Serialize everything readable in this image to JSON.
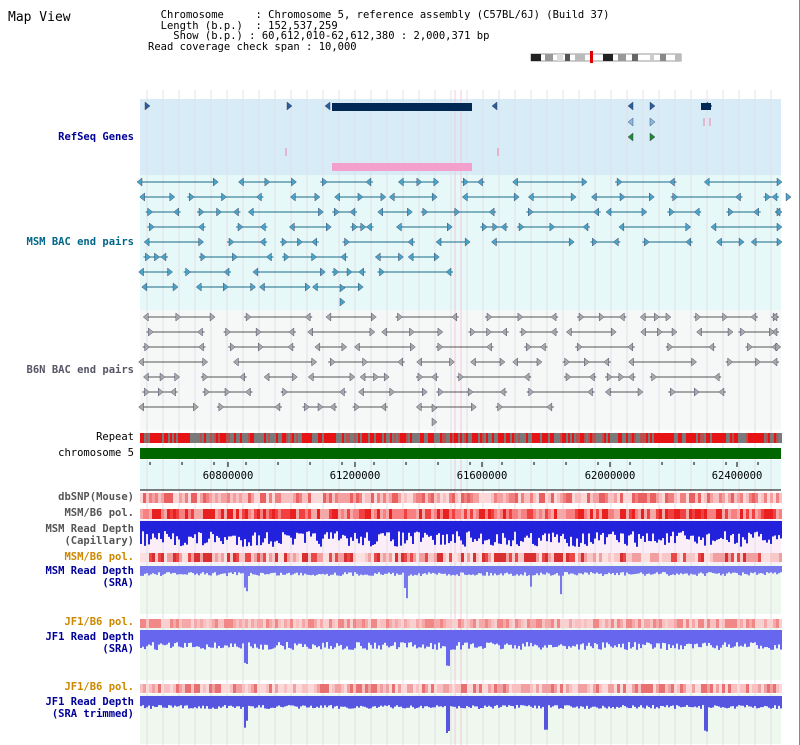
{
  "title": "Map View",
  "info": {
    "chromosome_label": "Chromosome",
    "chromosome_value": "Chromosome 5, reference assembly (C57BL/6J) (Build 37)",
    "length_label": "Length (b.p.)",
    "length_value": "152,537,259",
    "show_label": "Show (b.p.)",
    "show_value": "60,612,010-62,612,380 : 2,000,371 bp",
    "coverage_label": "Read coverage check span",
    "coverage_value": "10,000"
  },
  "tracks": {
    "refseq": "RefSeq Genes",
    "msm_bac": "MSM BAC end pairs",
    "b6n_bac": "B6N BAC end pairs",
    "repeat": "Repeat",
    "chromosome": "chromosome 5",
    "dbsnp": "dbSNP(Mouse)",
    "msm_b6_pol_1": "MSM/B6 pol.",
    "msm_depth_cap_1": "MSM Read Depth",
    "msm_depth_cap_2": "(Capillary)",
    "msm_b6_pol_2": "MSM/B6 pol.",
    "msm_depth_sra_1": "MSM Read Depth",
    "msm_depth_sra_2": "(SRA)",
    "jf1_b6_pol_1": "JF1/B6 pol.",
    "jf1_depth_1": "JF1 Read Depth",
    "jf1_depth_2": "(SRA)",
    "jf1_b6_pol_2": "JF1/B6 pol.",
    "jf1_trim_1": "JF1 Read Depth",
    "jf1_trim_2": "(SRA trimmed)"
  },
  "axis_ticks": [
    "60800000",
    "61200000",
    "61600000",
    "62000000",
    "62400000"
  ],
  "colors": {
    "blue_label": "#000099",
    "teal_label": "#006688",
    "grey_label": "#555566",
    "orange_label": "#cc8800",
    "refseq_bg": "#d8ecf8",
    "bac_bg": "#e6f8f8",
    "chrom_green": "#006600"
  }
}
